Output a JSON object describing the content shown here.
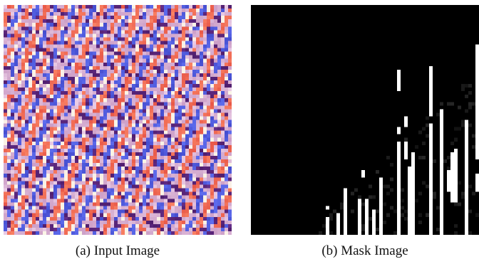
{
  "figure": {
    "subfigures": [
      {
        "caption": "(a) Input Image",
        "image": "colorful-noise-pattern"
      },
      {
        "caption": "(b) Mask Image",
        "image": "binary-mask-vertical-bars"
      }
    ]
  },
  "colors": {
    "background": "#ffffff",
    "mask_background": "#000000",
    "mask_foreground": "#ffffff",
    "pattern_red": "#e8463c",
    "pattern_blue": "#3b3fc8",
    "pattern_purple": "#5a2a7a",
    "pattern_pink": "#f4c8d0"
  }
}
